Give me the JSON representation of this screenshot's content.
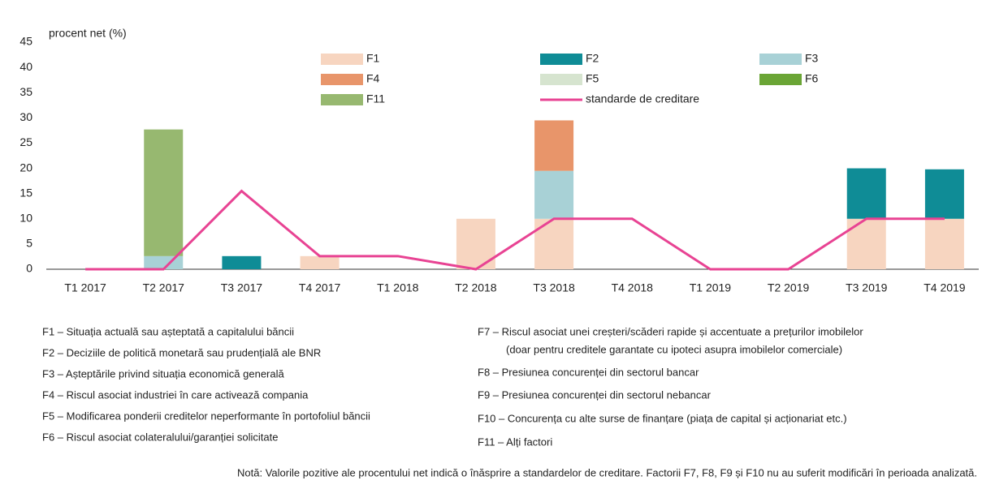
{
  "chart_data": {
    "type": "bar",
    "stacked": true,
    "y_label": "procent net (%)",
    "categories": [
      "T1 2017",
      "T2 2017",
      "T3 2017",
      "T4 2017",
      "T1 2018",
      "T2 2018",
      "T3 2018",
      "T4 2018",
      "T1 2019",
      "T2 2019",
      "T3 2019",
      "T4 2019"
    ],
    "ylim": [
      0,
      45
    ],
    "yticks": [
      0,
      5,
      10,
      15,
      20,
      25,
      30,
      35,
      40,
      45
    ],
    "grid": false,
    "series": [
      {
        "name": "F1",
        "color": "#f7d5c0",
        "values": [
          null,
          null,
          null,
          2.6,
          null,
          10,
          10,
          null,
          null,
          null,
          10,
          10
        ]
      },
      {
        "name": "F2",
        "color": "#0f8c96",
        "values": [
          null,
          null,
          2.6,
          null,
          null,
          null,
          null,
          null,
          null,
          null,
          10,
          9.8
        ]
      },
      {
        "name": "F3",
        "color": "#a8d1d6",
        "values": [
          null,
          2.6,
          null,
          null,
          null,
          null,
          9.5,
          null,
          null,
          null,
          null,
          null
        ]
      },
      {
        "name": "F4",
        "color": "#e8956a",
        "values": [
          null,
          null,
          null,
          null,
          null,
          null,
          10,
          null,
          null,
          null,
          null,
          null
        ]
      },
      {
        "name": "F5",
        "color": "#d6e4cf",
        "values": [
          null,
          null,
          null,
          null,
          null,
          null,
          null,
          null,
          null,
          null,
          null,
          null
        ]
      },
      {
        "name": "F6",
        "color": "#6aa535",
        "values": [
          null,
          null,
          null,
          null,
          null,
          null,
          null,
          null,
          null,
          null,
          null,
          null
        ]
      },
      {
        "name": "F11",
        "color": "#97b870",
        "values": [
          null,
          25.1,
          null,
          null,
          null,
          null,
          null,
          null,
          null,
          null,
          null,
          null
        ]
      },
      {
        "name": "standarde de creditare",
        "color": "#e84393",
        "kind": "line",
        "values": [
          0,
          0,
          15.5,
          2.6,
          2.6,
          0,
          10,
          10,
          0,
          0,
          10,
          10
        ]
      }
    ],
    "annotations": {
      "left": [
        "F1 – Situația actuală sau așteptată a capitalului băncii",
        "F2 – Deciziile de politică monetară sau prudențială ale BNR",
        "F3 – Așteptările privind situația economică generală",
        "F4 – Riscul asociat industriei în care activează compania",
        "F5 – Modificarea ponderii creditelor neperformante în portofoliul băncii",
        "F6 – Riscul asociat colateralului/garanției solicitate"
      ],
      "right": [
        "F7 – Riscul asociat unei creșteri/scăderi rapide și accentuate a prețurilor imobilelor",
        "(doar pentru creditele garantate cu ipoteci asupra imobilelor comerciale)",
        "F8 – Presiunea concurenței din sectorul bancar",
        "F9 – Presiunea concurenței din sectorul nebancar",
        "F10 – Concurența cu alte surse de finanțare (piața de capital și acționariat etc.)",
        "F11 – Alți factori"
      ],
      "note": "Notă: Valorile pozitive ale procentului net indică o înăsprire a standardelor de creditare. Factorii F7, F8, F9 și F10 nu au suferit modificări în perioada analizată."
    }
  }
}
